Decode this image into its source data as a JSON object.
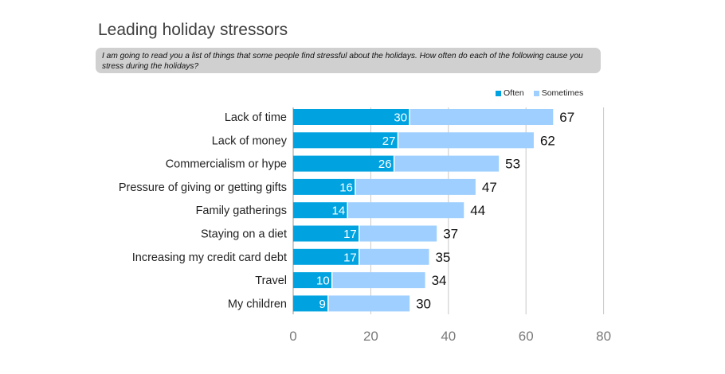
{
  "title": "Leading holiday stressors",
  "question": "I am going to read you a list of things that some people find stressful about the holidays. How often do each of the following cause you stress during the holidays?",
  "legend": {
    "often": "Often",
    "sometimes": "Sometimes"
  },
  "colors": {
    "often": "#00a3e0",
    "sometimes": "#9ecfff",
    "grid": "#c8c8c8",
    "axis_text": "#7a7a7a"
  },
  "chart_data": {
    "type": "bar",
    "orientation": "horizontal",
    "stacked": true,
    "categories": [
      "Lack of time",
      "Lack of money",
      "Commercialism or hype",
      "Pressure of giving or getting gifts",
      "Family gatherings",
      "Staying on a diet",
      "Increasing my credit card debt",
      "Travel",
      "My children"
    ],
    "series": [
      {
        "name": "Often",
        "values": [
          30,
          27,
          26,
          16,
          14,
          17,
          17,
          10,
          9
        ]
      },
      {
        "name": "Sometimes",
        "values": [
          37,
          35,
          27,
          31,
          30,
          20,
          18,
          24,
          21
        ]
      }
    ],
    "totals": [
      67,
      62,
      53,
      47,
      44,
      37,
      35,
      34,
      30
    ],
    "xlim": [
      0,
      80
    ],
    "xticks": [
      0,
      20,
      40,
      60,
      80
    ],
    "grid": true,
    "legend_position": "top-right"
  }
}
